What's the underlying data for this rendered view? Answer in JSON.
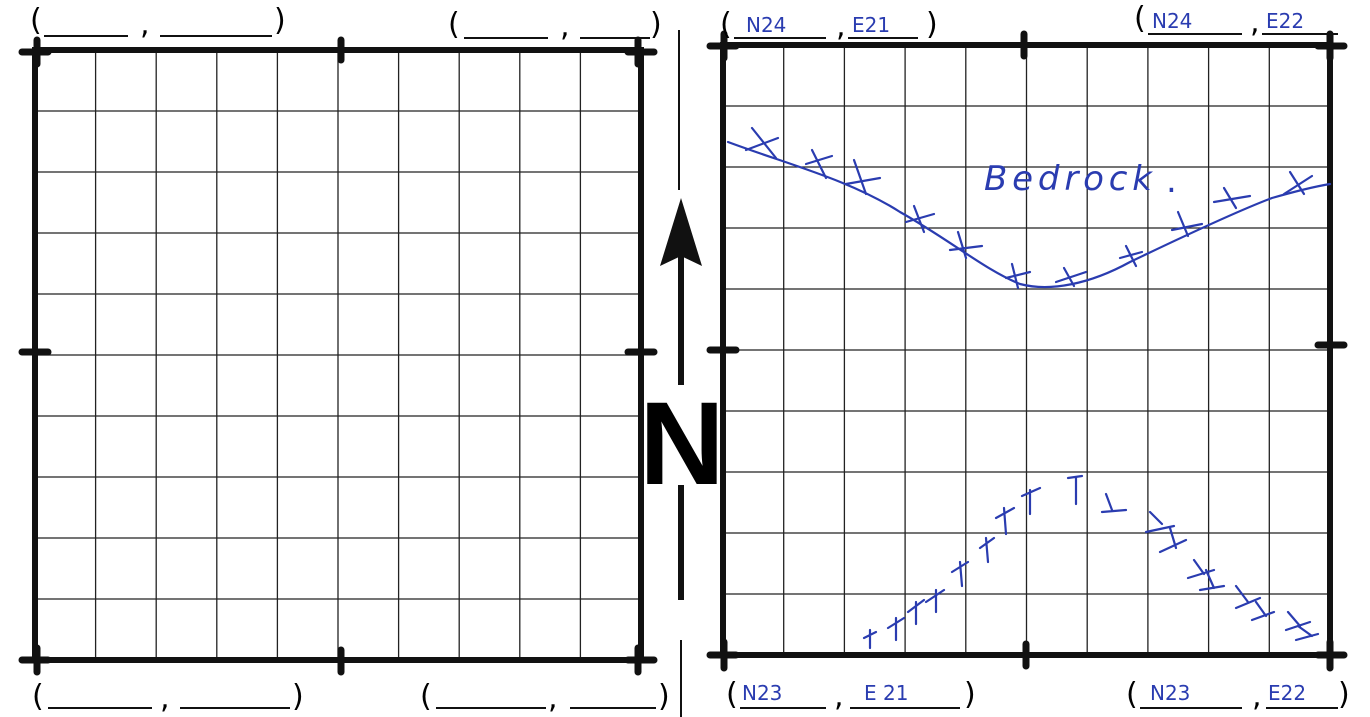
{
  "north_label": "N",
  "empty_grid": {
    "coords": [
      {
        "n": "",
        "e": ""
      },
      {
        "n": "",
        "e": ""
      },
      {
        "n": "",
        "e": ""
      },
      {
        "n": "",
        "e": ""
      }
    ]
  },
  "filled_grid": {
    "coords": {
      "top_left": {
        "n": "N24",
        "e": "E21"
      },
      "top_right": {
        "n": "N24",
        "e": "E22"
      },
      "bottom_left": {
        "n": "N23",
        "e": "E 21"
      },
      "bottom_right": {
        "n": "N23",
        "e": "E22"
      }
    },
    "feature_label": "Bedrock",
    "feature_label_suffix": "."
  },
  "colors": {
    "ink": "#111111",
    "pen": "#2a3cb0"
  }
}
